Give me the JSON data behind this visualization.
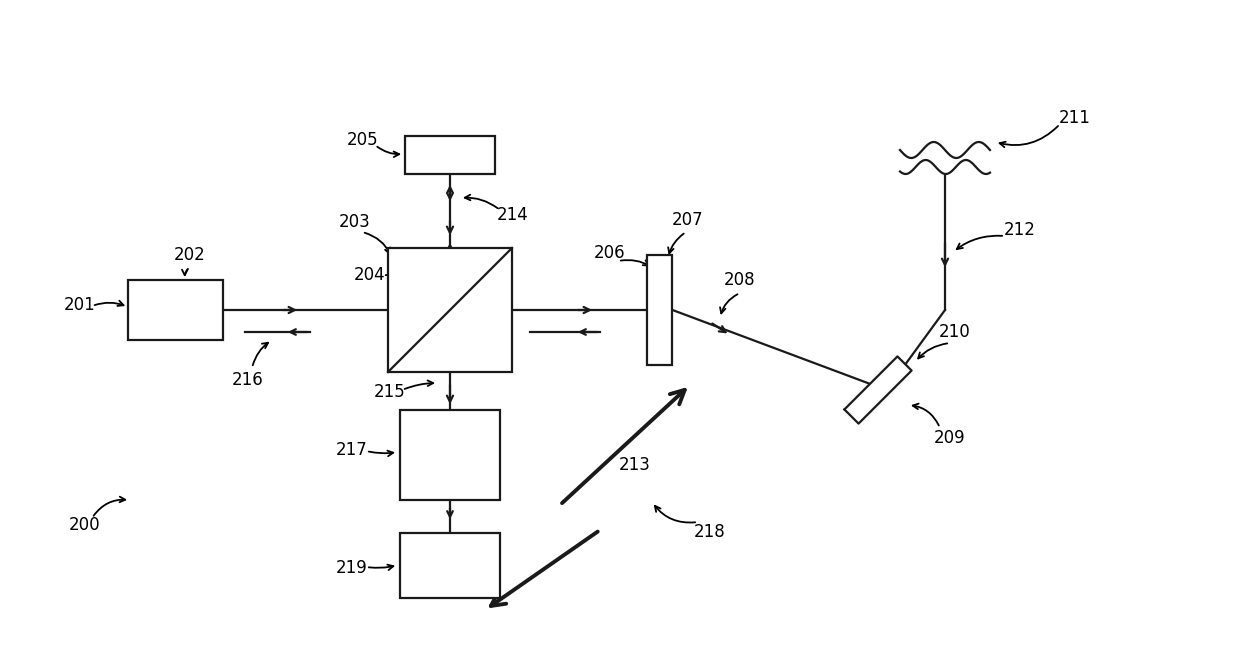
{
  "bg_color": "#ffffff",
  "line_color": "#1a1a1a",
  "fig_width": 12.4,
  "fig_height": 6.65,
  "dpi": 100,
  "lw": 1.6,
  "lw_thick": 2.5,
  "fontsize": 12
}
